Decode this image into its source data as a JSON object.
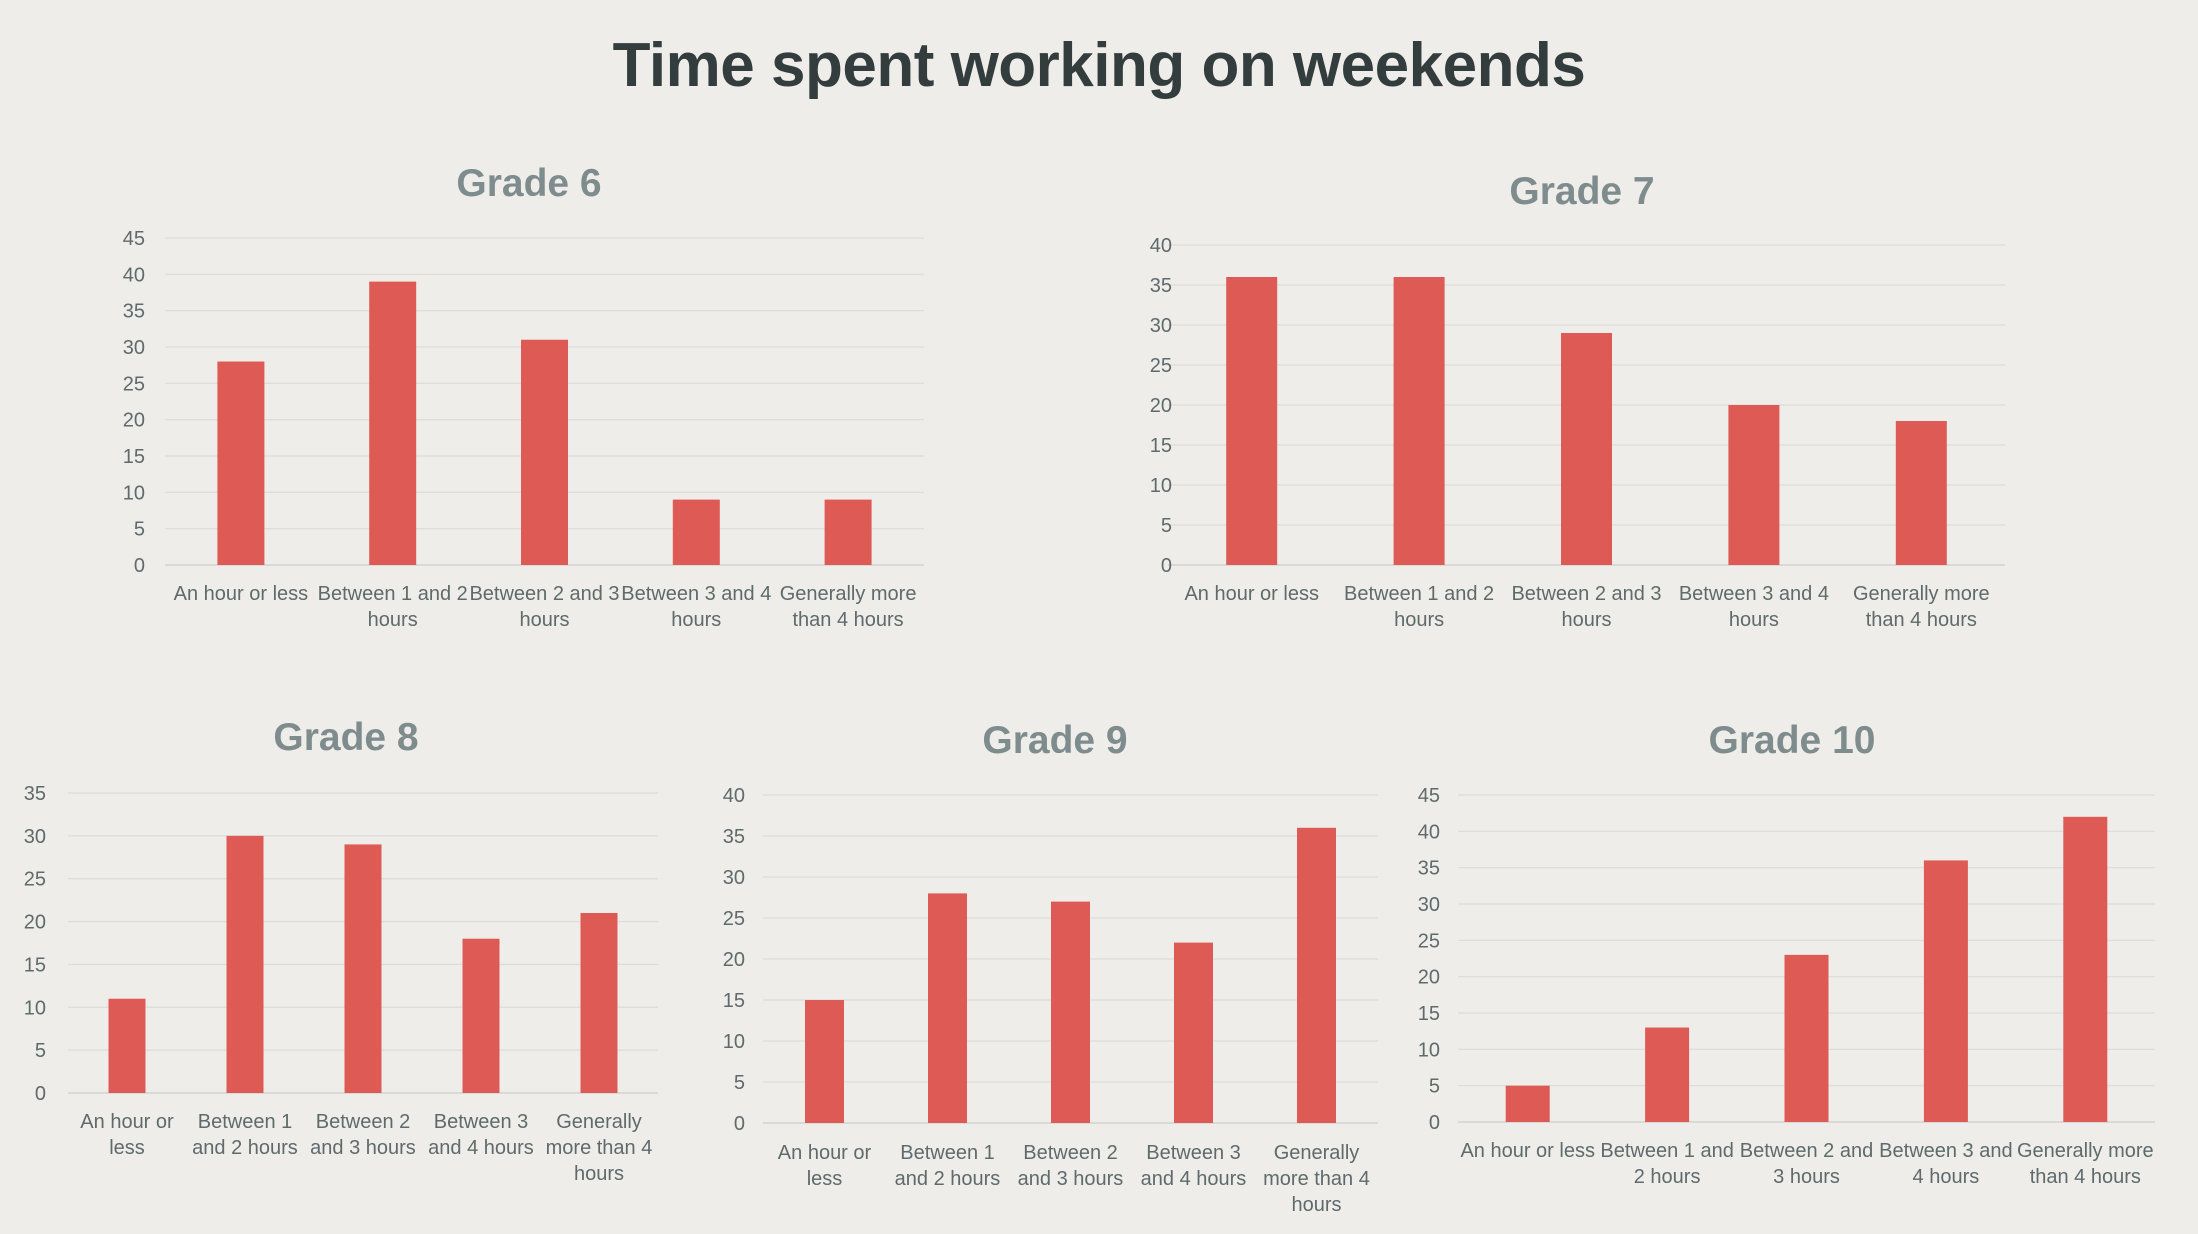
{
  "title": "Time spent working on weekends",
  "colors": {
    "bar": "#DE5B55",
    "background": "#EFEDE9",
    "title": "#333D3E",
    "panel_title": "#7E8C8E"
  },
  "chart_data": [
    {
      "type": "bar",
      "title": "Grade 6",
      "categories": [
        "An hour or less",
        "Between 1 and 2 hours",
        "Between 2 and 3 hours",
        "Between 3 and 4 hours",
        "Generally more than 4 hours"
      ],
      "category_lines": [
        [
          "An hour or less"
        ],
        [
          "Between 1 and 2",
          "hours"
        ],
        [
          "Between 2 and 3",
          "hours"
        ],
        [
          "Between 3 and 4",
          "hours"
        ],
        [
          "Generally more",
          "than 4 hours"
        ]
      ],
      "values": [
        28,
        39,
        31,
        9,
        9
      ],
      "ylim": [
        0,
        45
      ],
      "ystep": 5,
      "grid": true,
      "xlabel": "",
      "ylabel": ""
    },
    {
      "type": "bar",
      "title": "Grade 7",
      "categories": [
        "An hour or less",
        "Between 1 and 2 hours",
        "Between 2 and 3 hours",
        "Between 3 and 4 hours",
        "Generally more than 4 hours"
      ],
      "category_lines": [
        [
          "An hour or less"
        ],
        [
          "Between 1 and 2",
          "hours"
        ],
        [
          "Between 2 and 3",
          "hours"
        ],
        [
          "Between 3 and 4",
          "hours"
        ],
        [
          "Generally more",
          "than 4 hours"
        ]
      ],
      "values": [
        36,
        36,
        29,
        20,
        18
      ],
      "ylim": [
        0,
        40
      ],
      "ystep": 5,
      "grid": true,
      "xlabel": "",
      "ylabel": ""
    },
    {
      "type": "bar",
      "title": "Grade 8",
      "categories": [
        "An hour or less",
        "Between 1 and 2 hours",
        "Between 2 and 3 hours",
        "Between 3 and 4 hours",
        "Generally more than 4 hours"
      ],
      "category_lines": [
        [
          "An hour or",
          "less"
        ],
        [
          "Between 1",
          "and 2 hours"
        ],
        [
          "Between 2",
          "and 3 hours"
        ],
        [
          "Between 3",
          "and 4 hours"
        ],
        [
          "Generally",
          "more than 4",
          "hours"
        ]
      ],
      "values": [
        11,
        30,
        29,
        18,
        21
      ],
      "ylim": [
        0,
        35
      ],
      "ystep": 5,
      "grid": true,
      "xlabel": "",
      "ylabel": ""
    },
    {
      "type": "bar",
      "title": "Grade 9",
      "categories": [
        "An hour or less",
        "Between 1 and 2 hours",
        "Between 2 and 3 hours",
        "Between 3 and 4 hours",
        "Generally more than 4 hours"
      ],
      "category_lines": [
        [
          "An hour or",
          "less"
        ],
        [
          "Between 1",
          "and 2 hours"
        ],
        [
          "Between 2",
          "and 3 hours"
        ],
        [
          "Between 3",
          "and 4 hours"
        ],
        [
          "Generally",
          "more than 4",
          "hours"
        ]
      ],
      "values": [
        15,
        28,
        27,
        22,
        36
      ],
      "ylim": [
        0,
        40
      ],
      "ystep": 5,
      "grid": true,
      "xlabel": "",
      "ylabel": ""
    },
    {
      "type": "bar",
      "title": "Grade 10",
      "categories": [
        "An hour or less",
        "Between 1 and 2 hours",
        "Between 2 and 3 hours",
        "Between 3 and 4 hours",
        "Generally more than 4 hours"
      ],
      "category_lines": [
        [
          "An hour or less"
        ],
        [
          "Between 1 and",
          "2 hours"
        ],
        [
          "Between 2 and",
          "3 hours"
        ],
        [
          "Between 3 and",
          "4 hours"
        ],
        [
          "Generally more",
          "than 4 hours"
        ]
      ],
      "values": [
        5,
        13,
        23,
        36,
        42
      ],
      "ylim": [
        0,
        45
      ],
      "ystep": 5,
      "grid": true,
      "xlabel": "",
      "ylabel": ""
    }
  ]
}
